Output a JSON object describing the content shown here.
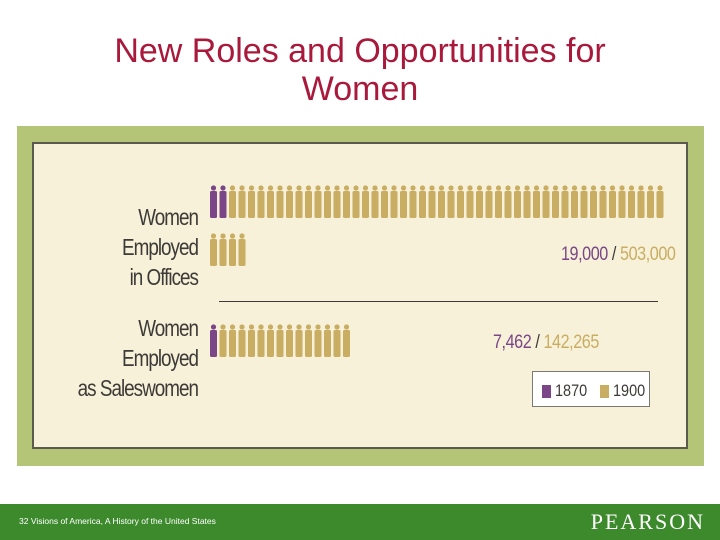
{
  "title_line1": "New Roles and Opportunities for",
  "title_line2": "Women",
  "chart_data": {
    "type": "pictograph",
    "title": "",
    "series": [
      {
        "name": "1870",
        "color": "#7a4687"
      },
      {
        "name": "1900",
        "color": "#c9ad63"
      }
    ],
    "rows": [
      {
        "label_line1": "Women Employed",
        "label_line2": "in Offices",
        "value_1870": 19000,
        "value_1900": 503000,
        "label_1870": "19,000",
        "label_1900": "503,000",
        "separator": "/"
      },
      {
        "label_line1": "Women Employed",
        "label_line2": "as Saleswomen",
        "value_1870": 7462,
        "value_1900": 142265,
        "label_1870": "7,462",
        "label_1900": "142,265",
        "separator": "/"
      }
    ],
    "legend": {
      "position": "bottom-right",
      "label_1870": "1870",
      "label_1900": "1900"
    }
  },
  "footer": {
    "page_number": "32",
    "citation": "Visions of America, A History of the United States",
    "publisher": "PEARSON"
  }
}
